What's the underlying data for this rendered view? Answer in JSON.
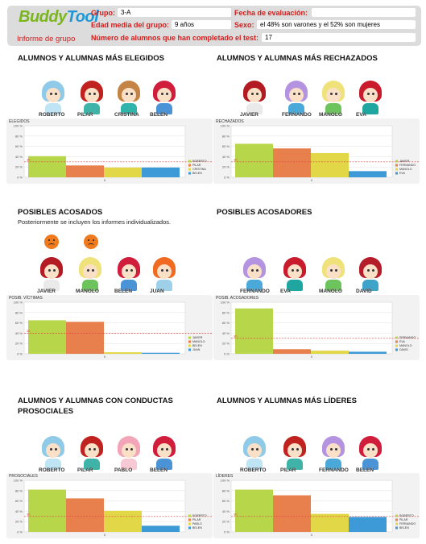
{
  "header": {
    "logo_part1": "Buddy",
    "logo_part2": "Tool",
    "group_label": "Grupo:",
    "group_value": "3-A",
    "age_label": "Edad media del grupo:",
    "age_value": "9 años",
    "eval_label": "Fecha de evaluación:",
    "eval_value": "",
    "sex_label": "Sexo:",
    "sex_value": "el 48% son varones y el 52% son mujeres",
    "report_label": "Informe de grupo",
    "completed_label": "Número de alumnos que han completado el test:",
    "completed_value": "17"
  },
  "sections": [
    {
      "title": "ALUMNOS Y ALUMNAS MÁS ELEGIDOS",
      "avatars": [
        {
          "name": "ROBERTO",
          "hair": "#8fcbe8",
          "shirt": "#bfe4f4"
        },
        {
          "name": "PILAR",
          "hair": "#c0221f",
          "shirt": "#3fb3a7"
        },
        {
          "name": "CRISTINA",
          "hair": "#c48446",
          "shirt": "#2fb3ab"
        },
        {
          "name": "BELEN",
          "hair": "#d11d3c",
          "shirt": "#4a93d6"
        }
      ],
      "chart_data": {
        "type": "bar",
        "title": "ELEGIDOS",
        "categories": [
          "ROBERTO",
          "PILAR",
          "CRISTINA",
          "BELEN"
        ],
        "values": [
          41,
          23,
          19,
          19
        ],
        "ylim": [
          0,
          100
        ],
        "reference": 30,
        "x_tick": "0"
      }
    },
    {
      "title": "ALUMNOS Y ALUMNAS MÁS RECHAZADOS",
      "avatars": [
        {
          "name": "JAVIER",
          "hair": "#b31a22",
          "shirt": "#eaeaea"
        },
        {
          "name": "FERNANDO",
          "hair": "#b493e0",
          "shirt": "#4aa9d8"
        },
        {
          "name": "MANOLO",
          "hair": "#f0e27a",
          "shirt": "#6ec45c"
        },
        {
          "name": "EVA",
          "hair": "#c91b2c",
          "shirt": "#1fa6a0"
        }
      ],
      "chart_data": {
        "type": "bar",
        "title": "RECHAZADOS",
        "categories": [
          "JAVIER",
          "FERNANDO",
          "MANOLO",
          "EVA"
        ],
        "values": [
          65,
          56,
          47,
          12
        ],
        "ylim": [
          0,
          100
        ],
        "reference": 30,
        "x_tick": "0"
      }
    },
    {
      "title": "POSIBLES ACOSADOS",
      "note": "Posteriormente se incluyen los informes individualizados.",
      "avatars": [
        {
          "name": "JAVIER",
          "hair": "#b31a22",
          "shirt": "#eaeaea"
        },
        {
          "name": "MANOLO",
          "hair": "#f0e27a",
          "shirt": "#6ec45c"
        },
        {
          "name": "BELEN",
          "hair": "#d11d3c",
          "shirt": "#4a93d6"
        },
        {
          "name": "JUAN",
          "hair": "#f06a22",
          "shirt": "#9fd0ea"
        }
      ],
      "chart_data": {
        "type": "bar",
        "title": "POSIB. VÍCTIMAS",
        "categories": [
          "JAVIER",
          "MANOLO",
          "BELEN",
          "JUAN"
        ],
        "values": [
          65,
          62,
          3,
          2
        ],
        "ylim": [
          0,
          100
        ],
        "reference": 40,
        "x_tick": "0"
      }
    },
    {
      "title": "POSIBLES ACOSADORES",
      "avatars": [
        {
          "name": "FERNANDO",
          "hair": "#b493e0",
          "shirt": "#4aa9d8"
        },
        {
          "name": "EVA",
          "hair": "#c91b2c",
          "shirt": "#1fa6a0"
        },
        {
          "name": "MANOLO",
          "hair": "#f0e27a",
          "shirt": "#6ec45c"
        },
        {
          "name": "DAVID",
          "hair": "#b51d2a",
          "shirt": "#3fa2c8"
        }
      ],
      "chart_data": {
        "type": "bar",
        "title": "POSIB. ACOSADORES",
        "categories": [
          "FERNANDO",
          "EVA",
          "MANOLO",
          "DAVID"
        ],
        "values": [
          88,
          9,
          6,
          4
        ],
        "ylim": [
          0,
          100
        ],
        "reference": 30,
        "x_tick": "0"
      }
    },
    {
      "title": "ALUMNOS Y ALUMNAS CON CONDUCTAS PROSOCIALES",
      "avatars": [
        {
          "name": "ROBERTO",
          "hair": "#8fcbe8",
          "shirt": "#bfe4f4"
        },
        {
          "name": "PILAR",
          "hair": "#c0221f",
          "shirt": "#3fb3a7"
        },
        {
          "name": "PABLO",
          "hair": "#f2a5b8",
          "shirt": "#f6c9d4"
        },
        {
          "name": "BELEN",
          "hair": "#d11d3c",
          "shirt": "#4a93d6"
        }
      ],
      "chart_data": {
        "type": "bar",
        "title": "PROSOCIALES",
        "categories": [
          "ROBERTO",
          "PILAR",
          "PABLO",
          "BELEN"
        ],
        "values": [
          82,
          65,
          41,
          12
        ],
        "ylim": [
          0,
          100
        ],
        "reference": 30,
        "x_tick": "0"
      }
    },
    {
      "title": "ALUMNOS Y ALUMNAS MÁS LÍDERES",
      "avatars": [
        {
          "name": "ROBERTO",
          "hair": "#8fcbe8",
          "shirt": "#bfe4f4"
        },
        {
          "name": "PILAR",
          "hair": "#c0221f",
          "shirt": "#3fb3a7"
        },
        {
          "name": "FERNANDO",
          "hair": "#b493e0",
          "shirt": "#4aa9d8"
        },
        {
          "name": "BELEN",
          "hair": "#d11d3c",
          "shirt": "#4a93d6"
        }
      ],
      "chart_data": {
        "type": "bar",
        "title": "LÍDERES",
        "categories": [
          "ROBERTO",
          "PILAR",
          "FERNANDO",
          "BELEN"
        ],
        "values": [
          82,
          71,
          35,
          29
        ],
        "ylim": [
          0,
          100
        ],
        "reference": 30,
        "x_tick": "0"
      }
    }
  ],
  "bar_colors": [
    "#b8d64a",
    "#e8804d",
    "#e2d847",
    "#3d9ad6"
  ],
  "y_ticks": [
    "100 %",
    "80 %",
    "60 %",
    "40 %",
    "20 %",
    "0 %"
  ]
}
